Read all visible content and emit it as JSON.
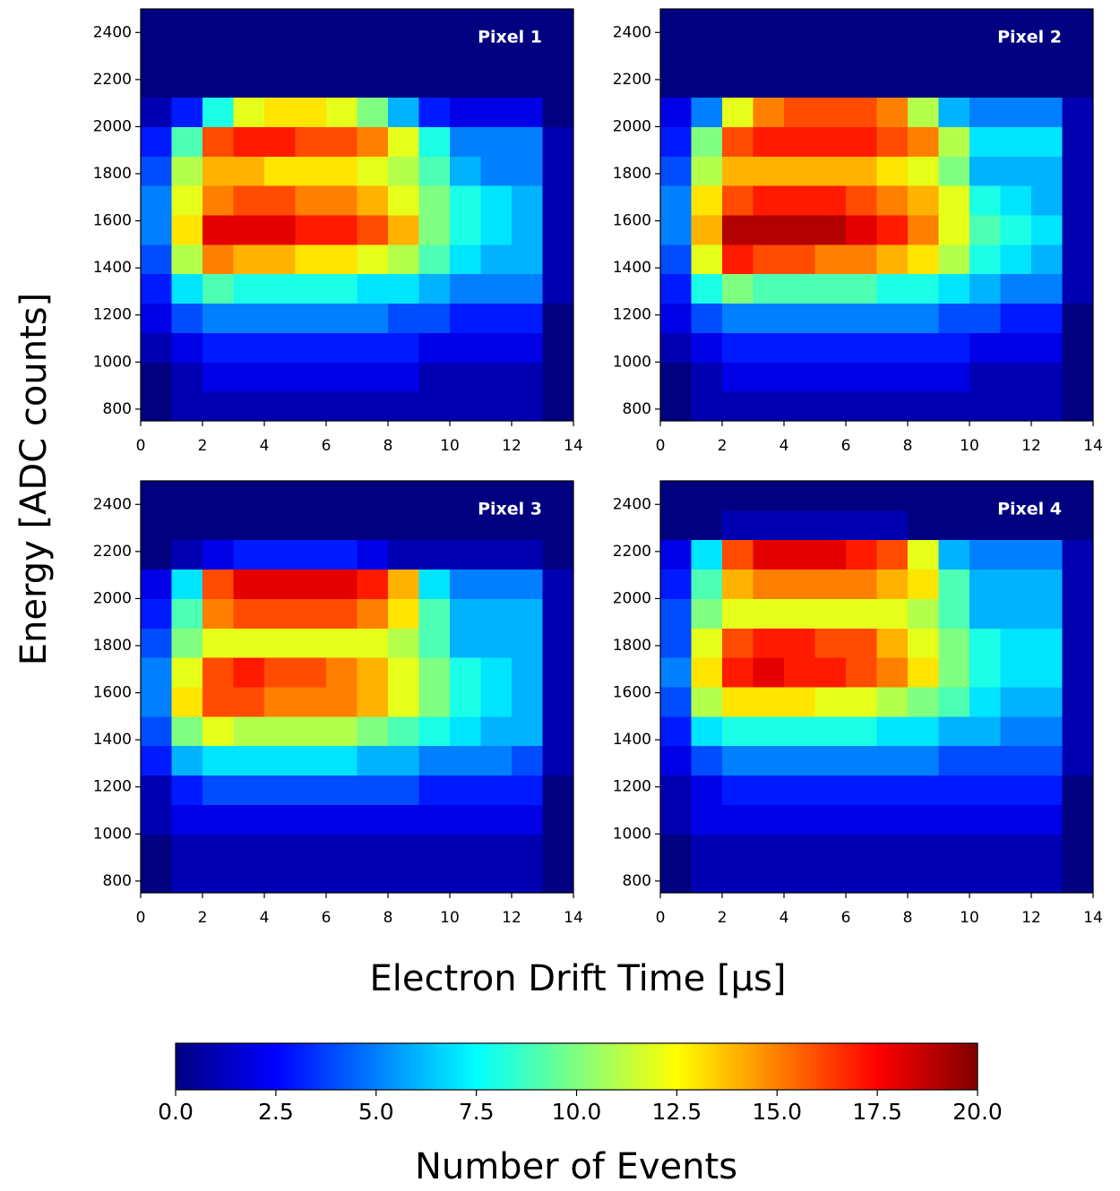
{
  "chart_data": [
    {
      "type": "heatmap",
      "title": "Pixel 1",
      "x_edges": [
        0,
        1,
        2,
        3,
        4,
        5,
        6,
        7,
        8,
        9,
        10,
        11,
        12,
        13,
        14
      ],
      "y_edges": [
        750,
        875,
        1000,
        1125,
        1250,
        1375,
        1500,
        1625,
        1750,
        1875,
        2000,
        2125,
        2250,
        2375,
        2500
      ],
      "xlim": [
        0,
        14
      ],
      "ylim": [
        750,
        2500
      ],
      "xticks": [
        0,
        2,
        4,
        6,
        8,
        10,
        12,
        14
      ],
      "yticks": [
        800,
        1000,
        1200,
        1400,
        1600,
        1800,
        2000,
        2200,
        2400
      ],
      "values": [
        [
          0,
          1,
          1,
          1,
          1,
          1,
          1,
          1,
          1,
          1,
          1,
          1,
          1,
          0
        ],
        [
          0,
          1,
          2,
          2,
          2,
          2,
          2,
          2,
          2,
          1,
          1,
          1,
          1,
          0
        ],
        [
          1,
          2,
          3,
          3,
          3,
          3,
          3,
          3,
          3,
          2,
          2,
          2,
          2,
          0
        ],
        [
          2,
          4,
          5,
          5,
          5,
          5,
          5,
          5,
          4,
          4,
          3,
          3,
          3,
          0
        ],
        [
          3,
          7,
          9,
          8,
          8,
          8,
          8,
          7,
          7,
          6,
          5,
          5,
          5,
          1
        ],
        [
          4,
          11,
          15,
          14,
          14,
          13,
          13,
          12,
          11,
          9,
          7,
          6,
          6,
          1
        ],
        [
          5,
          13,
          18,
          18,
          18,
          17,
          17,
          16,
          14,
          10,
          8,
          7,
          6,
          1
        ],
        [
          5,
          12,
          15,
          16,
          16,
          15,
          15,
          14,
          12,
          10,
          8,
          7,
          6,
          1
        ],
        [
          4,
          11,
          14,
          14,
          13,
          13,
          13,
          12,
          11,
          9,
          6,
          5,
          5,
          1
        ],
        [
          3,
          9,
          16,
          17,
          17,
          16,
          16,
          15,
          12,
          8,
          5,
          5,
          5,
          1
        ],
        [
          1,
          3,
          8,
          12,
          13,
          13,
          12,
          10,
          6,
          3,
          2,
          2,
          2,
          0
        ],
        [
          0,
          0,
          0,
          0,
          0,
          0,
          0,
          0,
          0,
          0,
          0,
          0,
          0,
          0
        ],
        [
          0,
          0,
          0,
          0,
          0,
          0,
          0,
          0,
          0,
          0,
          0,
          0,
          0,
          0
        ],
        [
          0,
          0,
          0,
          0,
          0,
          0,
          0,
          0,
          0,
          0,
          0,
          0,
          0,
          0
        ]
      ]
    },
    {
      "type": "heatmap",
      "title": "Pixel 2",
      "x_edges": [
        0,
        1,
        2,
        3,
        4,
        5,
        6,
        7,
        8,
        9,
        10,
        11,
        12,
        13,
        14
      ],
      "y_edges": [
        750,
        875,
        1000,
        1125,
        1250,
        1375,
        1500,
        1625,
        1750,
        1875,
        2000,
        2125,
        2250,
        2375,
        2500
      ],
      "xlim": [
        0,
        14
      ],
      "ylim": [
        750,
        2500
      ],
      "xticks": [
        0,
        2,
        4,
        6,
        8,
        10,
        12,
        14
      ],
      "yticks": [
        800,
        1000,
        1200,
        1400,
        1600,
        1800,
        2000,
        2200,
        2400
      ],
      "values": [
        [
          0,
          1,
          1,
          1,
          1,
          1,
          1,
          1,
          1,
          1,
          1,
          1,
          1,
          0
        ],
        [
          0,
          1,
          2,
          2,
          2,
          2,
          2,
          2,
          2,
          2,
          1,
          1,
          1,
          0
        ],
        [
          1,
          2,
          3,
          3,
          3,
          3,
          3,
          3,
          3,
          3,
          2,
          2,
          2,
          0
        ],
        [
          2,
          4,
          5,
          5,
          5,
          5,
          5,
          5,
          5,
          4,
          4,
          3,
          3,
          0
        ],
        [
          3,
          8,
          10,
          9,
          9,
          9,
          9,
          8,
          8,
          7,
          6,
          5,
          5,
          1
        ],
        [
          4,
          12,
          17,
          16,
          16,
          15,
          15,
          14,
          13,
          11,
          8,
          7,
          6,
          1
        ],
        [
          5,
          14,
          19,
          19,
          19,
          19,
          18,
          17,
          15,
          12,
          9,
          8,
          7,
          1
        ],
        [
          5,
          13,
          16,
          17,
          17,
          17,
          16,
          15,
          14,
          12,
          8,
          7,
          6,
          1
        ],
        [
          4,
          11,
          14,
          14,
          14,
          14,
          14,
          13,
          12,
          10,
          6,
          6,
          6,
          1
        ],
        [
          3,
          10,
          16,
          17,
          17,
          17,
          17,
          16,
          15,
          11,
          7,
          7,
          7,
          1
        ],
        [
          2,
          5,
          12,
          15,
          16,
          16,
          16,
          15,
          11,
          6,
          5,
          5,
          5,
          1
        ],
        [
          0,
          0,
          0,
          0,
          0,
          0,
          0,
          0,
          0,
          0,
          0,
          0,
          0,
          0
        ],
        [
          0,
          0,
          0,
          0,
          0,
          0,
          0,
          0,
          0,
          0,
          0,
          0,
          0,
          0
        ],
        [
          0,
          0,
          0,
          0,
          0,
          0,
          0,
          0,
          0,
          0,
          0,
          0,
          0,
          0
        ]
      ]
    },
    {
      "type": "heatmap",
      "title": "Pixel 3",
      "x_edges": [
        0,
        1,
        2,
        3,
        4,
        5,
        6,
        7,
        8,
        9,
        10,
        11,
        12,
        13,
        14
      ],
      "y_edges": [
        750,
        875,
        1000,
        1125,
        1250,
        1375,
        1500,
        1625,
        1750,
        1875,
        2000,
        2125,
        2250,
        2375,
        2500
      ],
      "xlim": [
        0,
        14
      ],
      "ylim": [
        750,
        2500
      ],
      "xticks": [
        0,
        2,
        4,
        6,
        8,
        10,
        12,
        14
      ],
      "yticks": [
        800,
        1000,
        1200,
        1400,
        1600,
        1800,
        2000,
        2200,
        2400
      ],
      "values": [
        [
          0,
          1,
          1,
          1,
          1,
          1,
          1,
          1,
          1,
          1,
          1,
          1,
          1,
          0
        ],
        [
          0,
          1,
          1,
          1,
          1,
          1,
          1,
          1,
          1,
          1,
          1,
          1,
          1,
          0
        ],
        [
          1,
          2,
          2,
          2,
          2,
          2,
          2,
          2,
          2,
          2,
          2,
          2,
          2,
          0
        ],
        [
          1,
          3,
          4,
          4,
          4,
          4,
          4,
          4,
          4,
          3,
          3,
          3,
          3,
          0
        ],
        [
          3,
          6,
          7,
          7,
          7,
          7,
          7,
          6,
          6,
          5,
          5,
          5,
          4,
          1
        ],
        [
          4,
          10,
          12,
          11,
          11,
          11,
          11,
          10,
          9,
          8,
          7,
          6,
          6,
          1
        ],
        [
          5,
          13,
          16,
          16,
          15,
          15,
          15,
          14,
          12,
          10,
          8,
          7,
          6,
          1
        ],
        [
          5,
          12,
          16,
          17,
          16,
          16,
          15,
          14,
          12,
          10,
          8,
          7,
          6,
          1
        ],
        [
          4,
          10,
          12,
          12,
          12,
          12,
          12,
          12,
          11,
          9,
          6,
          6,
          6,
          1
        ],
        [
          3,
          9,
          15,
          16,
          16,
          16,
          16,
          15,
          13,
          9,
          6,
          6,
          6,
          1
        ],
        [
          2,
          7,
          16,
          18,
          18,
          18,
          18,
          17,
          14,
          7,
          5,
          5,
          5,
          1
        ],
        [
          0,
          1,
          2,
          3,
          3,
          3,
          3,
          2,
          1,
          1,
          1,
          1,
          1,
          0
        ],
        [
          0,
          0,
          0,
          0,
          0,
          0,
          0,
          0,
          0,
          0,
          0,
          0,
          0,
          0
        ],
        [
          0,
          0,
          0,
          0,
          0,
          0,
          0,
          0,
          0,
          0,
          0,
          0,
          0,
          0
        ]
      ]
    },
    {
      "type": "heatmap",
      "title": "Pixel 4",
      "x_edges": [
        0,
        1,
        2,
        3,
        4,
        5,
        6,
        7,
        8,
        9,
        10,
        11,
        12,
        13,
        14
      ],
      "y_edges": [
        750,
        875,
        1000,
        1125,
        1250,
        1375,
        1500,
        1625,
        1750,
        1875,
        2000,
        2125,
        2250,
        2375,
        2500
      ],
      "xlim": [
        0,
        14
      ],
      "ylim": [
        750,
        2500
      ],
      "xticks": [
        0,
        2,
        4,
        6,
        8,
        10,
        12,
        14
      ],
      "yticks": [
        800,
        1000,
        1200,
        1400,
        1600,
        1800,
        2000,
        2200,
        2400
      ],
      "values": [
        [
          0,
          1,
          1,
          1,
          1,
          1,
          1,
          1,
          1,
          1,
          1,
          1,
          1,
          0
        ],
        [
          0,
          1,
          1,
          1,
          1,
          1,
          1,
          1,
          1,
          1,
          1,
          1,
          1,
          0
        ],
        [
          1,
          2,
          2,
          2,
          2,
          2,
          2,
          2,
          2,
          2,
          2,
          2,
          2,
          0
        ],
        [
          1,
          2,
          3,
          3,
          3,
          3,
          3,
          3,
          3,
          3,
          3,
          3,
          3,
          0
        ],
        [
          2,
          4,
          5,
          5,
          5,
          5,
          5,
          5,
          5,
          4,
          4,
          4,
          4,
          1
        ],
        [
          3,
          7,
          8,
          8,
          8,
          8,
          8,
          7,
          7,
          6,
          6,
          5,
          5,
          1
        ],
        [
          4,
          11,
          13,
          13,
          13,
          12,
          12,
          11,
          10,
          9,
          7,
          6,
          6,
          1
        ],
        [
          5,
          13,
          17,
          18,
          17,
          17,
          16,
          15,
          13,
          10,
          8,
          7,
          7,
          1
        ],
        [
          4,
          12,
          16,
          17,
          17,
          16,
          16,
          14,
          12,
          10,
          8,
          7,
          7,
          1
        ],
        [
          4,
          10,
          12,
          12,
          12,
          12,
          12,
          12,
          11,
          9,
          6,
          6,
          6,
          1
        ],
        [
          3,
          9,
          14,
          15,
          15,
          15,
          15,
          14,
          13,
          9,
          6,
          6,
          6,
          1
        ],
        [
          2,
          7,
          16,
          18,
          18,
          18,
          17,
          16,
          12,
          6,
          5,
          5,
          5,
          1
        ],
        [
          0,
          0,
          1,
          1,
          1,
          1,
          1,
          1,
          0,
          0,
          0,
          0,
          0,
          0
        ],
        [
          0,
          0,
          0,
          0,
          0,
          0,
          0,
          0,
          0,
          0,
          0,
          0,
          0,
          0
        ]
      ]
    }
  ],
  "xlabel": "Electron Drift Time [μs]",
  "ylabel": "Energy [ADC counts]",
  "colorbar": {
    "label": "Number of Events",
    "colormap": "jet",
    "clim": [
      0,
      20
    ],
    "ticks": [
      {
        "value": 0,
        "label": "0.0"
      },
      {
        "value": 2.5,
        "label": "2.5"
      },
      {
        "value": 5,
        "label": "5.0"
      },
      {
        "value": 7.5,
        "label": "7.5"
      },
      {
        "value": 10,
        "label": "10.0"
      },
      {
        "value": 12.5,
        "label": "12.5"
      },
      {
        "value": 15,
        "label": "15.0"
      },
      {
        "value": 17.5,
        "label": "17.5"
      },
      {
        "value": 20,
        "label": "20.0"
      }
    ]
  }
}
